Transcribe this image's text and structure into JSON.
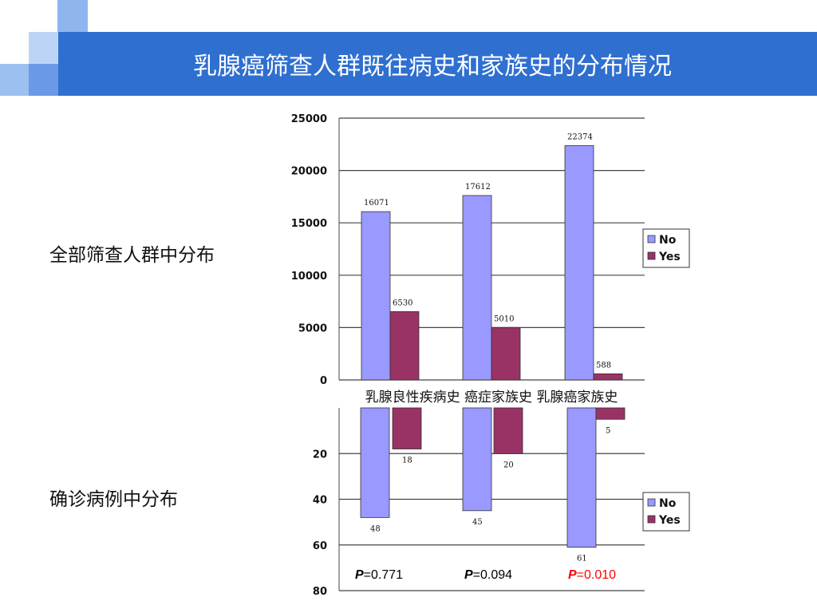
{
  "slide": {
    "title": "乳腺癌筛查人群既往病史和家族史的分布情况",
    "labels": {
      "top": "全部筛查人群中分布",
      "bottom": "确诊病例中分布"
    },
    "colors": {
      "title_bar": "#2f6fd0",
      "no": "#9999ff",
      "yes": "#993366"
    }
  },
  "chart_data": [
    {
      "type": "bar",
      "categories": [
        "乳腺良性疾病史",
        "癌症家族史",
        "乳腺癌家族史"
      ],
      "series": [
        {
          "name": "No",
          "values": [
            16071,
            17612,
            22374
          ]
        },
        {
          "name": "Yes",
          "values": [
            6530,
            5010,
            588
          ]
        }
      ],
      "ylim": [
        0,
        25000
      ],
      "yticks": [
        0,
        5000,
        10000,
        15000,
        20000,
        25000
      ],
      "grid": true,
      "legend": "right"
    },
    {
      "type": "bar",
      "orientation": "downward",
      "categories": [
        "乳腺良性疾病史",
        "癌症家族史",
        "乳腺癌家族史"
      ],
      "series": [
        {
          "name": "No",
          "values": [
            48,
            45,
            61
          ]
        },
        {
          "name": "Yes",
          "values": [
            18,
            20,
            5
          ]
        }
      ],
      "ylim": [
        0,
        80
      ],
      "yticks": [
        20,
        40,
        60,
        80
      ],
      "grid": true,
      "legend": "right",
      "annotations": [
        {
          "prefix": "P",
          "text": "=0.771",
          "color": "#000000"
        },
        {
          "prefix": "P",
          "text": "=0.094",
          "color": "#000000"
        },
        {
          "prefix": "P",
          "text": "=0.010",
          "color": "#ff0000"
        }
      ]
    }
  ]
}
